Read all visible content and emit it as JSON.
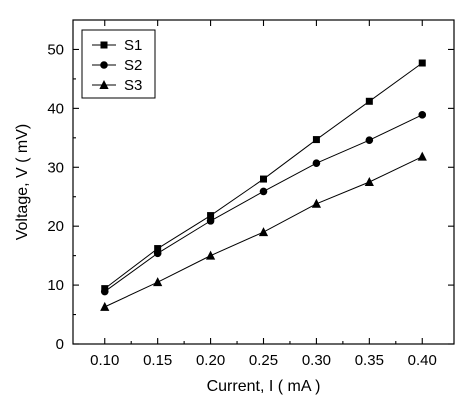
{
  "chart_data": {
    "type": "line",
    "title": "",
    "xlabel": "Current, I (  mA )",
    "ylabel": "Voltage, V (  mV)",
    "xlim": [
      0.07,
      0.43
    ],
    "ylim": [
      0,
      55
    ],
    "xticks": [
      0.1,
      0.15,
      0.2,
      0.25,
      0.3,
      0.35,
      0.4
    ],
    "yticks": [
      0,
      10,
      20,
      30,
      40,
      50
    ],
    "xtick_labels": [
      "0.10",
      "0.15",
      "0.20",
      "0.25",
      "0.30",
      "0.35",
      "0.40"
    ],
    "ytick_labels": [
      "0",
      "10",
      "20",
      "30",
      "40",
      "50"
    ],
    "grid": false,
    "legend_position": "top-left",
    "x": [
      0.1,
      0.15,
      0.2,
      0.25,
      0.3,
      0.35,
      0.4
    ],
    "series": [
      {
        "name": "S1",
        "marker": "square",
        "values": [
          9.4,
          16.2,
          21.8,
          28.0,
          34.7,
          41.2,
          47.7
        ]
      },
      {
        "name": "S2",
        "marker": "circle",
        "values": [
          8.9,
          15.4,
          20.9,
          25.9,
          30.7,
          34.6,
          38.9
        ]
      },
      {
        "name": "S3",
        "marker": "triangle",
        "values": [
          6.3,
          10.5,
          15.0,
          19.0,
          23.8,
          27.5,
          31.8
        ]
      }
    ],
    "colors": {
      "series": "#000000",
      "axes": "#000000",
      "background": "#ffffff"
    }
  }
}
